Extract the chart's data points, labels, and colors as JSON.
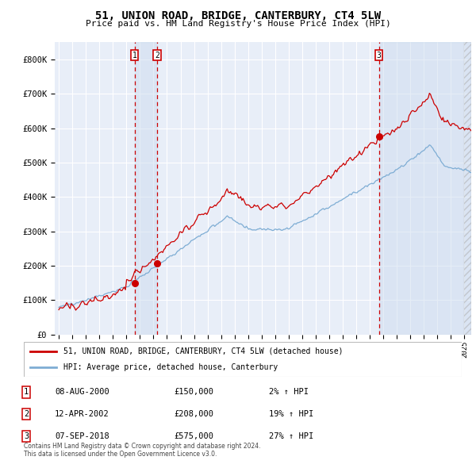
{
  "title": "51, UNION ROAD, BRIDGE, CANTERBURY, CT4 5LW",
  "subtitle": "Price paid vs. HM Land Registry's House Price Index (HPI)",
  "background_color": "#ffffff",
  "plot_bg_color": "#e8eef8",
  "grid_color": "#ffffff",
  "hpi_line_color": "#7eadd4",
  "price_line_color": "#cc0000",
  "marker_color": "#cc0000",
  "dashed_line_color": "#cc0000",
  "shade_color": "#cddcef",
  "ylim": [
    0,
    850000
  ],
  "yticks": [
    0,
    100000,
    200000,
    300000,
    400000,
    500000,
    600000,
    700000,
    800000
  ],
  "ytick_labels": [
    "£0",
    "£100K",
    "£200K",
    "£300K",
    "£400K",
    "£500K",
    "£600K",
    "£700K",
    "£800K"
  ],
  "xlim_start": 1994.7,
  "xlim_end": 2025.5,
  "xticks": [
    1995,
    1996,
    1997,
    1998,
    1999,
    2000,
    2001,
    2002,
    2003,
    2004,
    2005,
    2006,
    2007,
    2008,
    2009,
    2010,
    2011,
    2012,
    2013,
    2014,
    2015,
    2016,
    2017,
    2018,
    2019,
    2020,
    2021,
    2022,
    2023,
    2024,
    2025
  ],
  "sale_dates": [
    2000.6,
    2002.27,
    2018.68
  ],
  "sale_prices": [
    150000,
    208000,
    575000
  ],
  "sale_labels": [
    "1",
    "2",
    "3"
  ],
  "legend_line1": "51, UNION ROAD, BRIDGE, CANTERBURY, CT4 5LW (detached house)",
  "legend_line2": "HPI: Average price, detached house, Canterbury",
  "table_entries": [
    {
      "num": "1",
      "date": "08-AUG-2000",
      "price": "£150,000",
      "change": "2% ↑ HPI"
    },
    {
      "num": "2",
      "date": "12-APR-2002",
      "price": "£208,000",
      "change": "19% ↑ HPI"
    },
    {
      "num": "3",
      "date": "07-SEP-2018",
      "price": "£575,000",
      "change": "27% ↑ HPI"
    }
  ],
  "footnote": "Contains HM Land Registry data © Crown copyright and database right 2024.\nThis data is licensed under the Open Government Licence v3.0."
}
